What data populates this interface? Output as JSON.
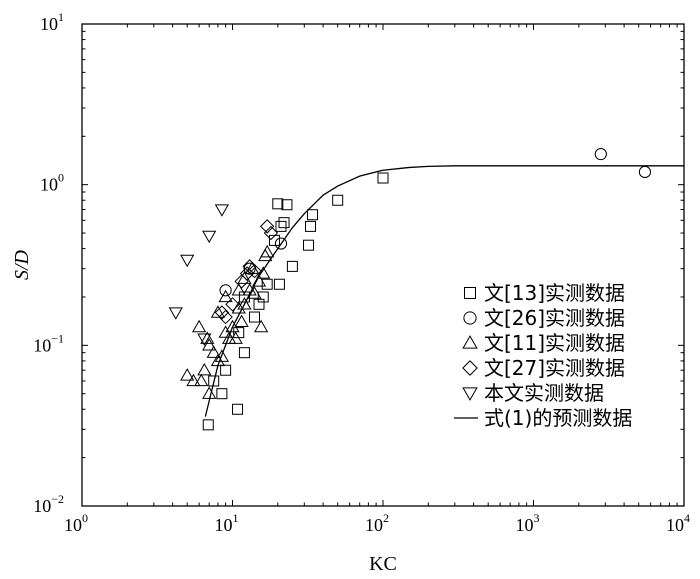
{
  "chart_data": {
    "type": "scatter",
    "xlabel": "KC",
    "ylabel": "S/D",
    "xscale": "log",
    "yscale": "log",
    "xlim": [
      1,
      10000
    ],
    "ylim": [
      0.01,
      10
    ],
    "x_ticks": [
      {
        "base": "10",
        "exp": "0"
      },
      {
        "base": "10",
        "exp": "1"
      },
      {
        "base": "10",
        "exp": "2"
      },
      {
        "base": "10",
        "exp": "3"
      },
      {
        "base": "10",
        "exp": "4"
      }
    ],
    "y_ticks": [
      {
        "base": "10",
        "exp": "−2"
      },
      {
        "base": "10",
        "exp": "−1"
      },
      {
        "base": "10",
        "exp": "0"
      },
      {
        "base": "10",
        "exp": "1"
      }
    ],
    "legend_position": "lower-right",
    "series": [
      {
        "name": "文[13]实测数据",
        "marker": "square",
        "points": [
          [
            6.9,
            0.032
          ],
          [
            10.8,
            0.04
          ],
          [
            8.5,
            0.05
          ],
          [
            7.5,
            0.06
          ],
          [
            9,
            0.07
          ],
          [
            12,
            0.09
          ],
          [
            11,
            0.12
          ],
          [
            12,
            0.2
          ],
          [
            14,
            0.15
          ],
          [
            15,
            0.18
          ],
          [
            16,
            0.2
          ],
          [
            17,
            0.24
          ],
          [
            20.5,
            0.24
          ],
          [
            19,
            0.45
          ],
          [
            21,
            0.55
          ],
          [
            22,
            0.58
          ],
          [
            23,
            0.75
          ],
          [
            20,
            0.76
          ],
          [
            25,
            0.31
          ],
          [
            32,
            0.42
          ],
          [
            33,
            0.55
          ],
          [
            34,
            0.65
          ],
          [
            50,
            0.8
          ],
          [
            100,
            1.1
          ]
        ]
      },
      {
        "name": "文[26]实测数据",
        "marker": "circle",
        "points": [
          [
            9,
            0.22
          ],
          [
            13,
            0.3
          ],
          [
            21,
            0.43
          ],
          [
            2800,
            1.55
          ],
          [
            5500,
            1.2
          ]
        ]
      },
      {
        "name": "文[11]实测数据",
        "marker": "triangle-up",
        "points": [
          [
            5,
            0.065
          ],
          [
            5.5,
            0.06
          ],
          [
            6.2,
            0.06
          ],
          [
            6.5,
            0.07
          ],
          [
            7,
            0.05
          ],
          [
            6,
            0.13
          ],
          [
            6.8,
            0.11
          ],
          [
            7,
            0.1
          ],
          [
            7.5,
            0.09
          ],
          [
            8,
            0.08
          ],
          [
            8.5,
            0.085
          ],
          [
            9,
            0.12
          ],
          [
            9,
            0.2
          ],
          [
            9.5,
            0.11
          ],
          [
            10,
            0.13
          ],
          [
            10.5,
            0.11
          ],
          [
            11,
            0.17
          ],
          [
            11,
            0.22
          ],
          [
            11.5,
            0.14
          ],
          [
            12,
            0.18
          ],
          [
            12,
            0.26
          ],
          [
            13,
            0.22
          ],
          [
            13.5,
            0.3
          ],
          [
            14,
            0.21
          ],
          [
            15,
            0.25
          ],
          [
            15.5,
            0.13
          ],
          [
            16,
            0.28
          ],
          [
            16.5,
            0.36
          ],
          [
            17,
            0.38
          ],
          [
            8,
            0.16
          ]
        ]
      },
      {
        "name": "文[27]实测数据",
        "marker": "diamond",
        "points": [
          [
            8.5,
            0.16
          ],
          [
            9,
            0.15
          ],
          [
            10,
            0.18
          ],
          [
            11.5,
            0.25
          ],
          [
            12.5,
            0.28
          ],
          [
            13,
            0.31
          ],
          [
            14,
            0.29
          ],
          [
            17,
            0.55
          ],
          [
            18,
            0.5
          ]
        ]
      },
      {
        "name": "本文实测数据",
        "marker": "triangle-down",
        "points": [
          [
            4.2,
            0.16
          ],
          [
            5,
            0.34
          ],
          [
            6.5,
            0.11
          ],
          [
            7,
            0.48
          ],
          [
            8.5,
            0.7
          ]
        ]
      },
      {
        "name": "式(1)的预测数据",
        "marker": "line",
        "points": [
          [
            6.6,
            0.036
          ],
          [
            8,
            0.075
          ],
          [
            10,
            0.13
          ],
          [
            12,
            0.18
          ],
          [
            15,
            0.27
          ],
          [
            20,
            0.4
          ],
          [
            25,
            0.54
          ],
          [
            30,
            0.66
          ],
          [
            40,
            0.86
          ],
          [
            50,
            0.98
          ],
          [
            70,
            1.13
          ],
          [
            100,
            1.23
          ],
          [
            150,
            1.28
          ],
          [
            200,
            1.3
          ],
          [
            300,
            1.31
          ],
          [
            500,
            1.31
          ],
          [
            1000,
            1.31
          ],
          [
            3000,
            1.31
          ],
          [
            10000,
            1.31
          ]
        ]
      }
    ]
  }
}
